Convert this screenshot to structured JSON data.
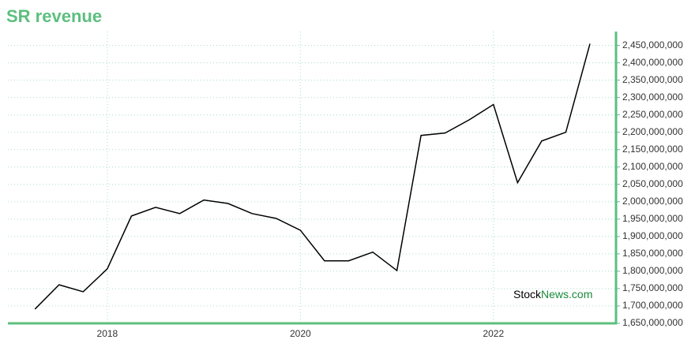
{
  "chart_data": {
    "type": "line",
    "title": "SR revenue",
    "watermark": [
      "Stock",
      "News.com"
    ],
    "x": [
      2017.25,
      2017.5,
      2017.75,
      2018.0,
      2018.25,
      2018.5,
      2018.75,
      2019.0,
      2019.25,
      2019.5,
      2019.75,
      2020.0,
      2020.25,
      2020.5,
      2020.75,
      2021.0,
      2021.25,
      2021.5,
      2021.75,
      2022.0,
      2022.25,
      2022.5,
      2022.75,
      2023.0
    ],
    "series": [
      {
        "color": "#000000",
        "values": [
          1691000000,
          1761000000,
          1741000000,
          1807000000,
          1959000000,
          1984000000,
          1966000000,
          2005000000,
          1995000000,
          1966000000,
          1952000000,
          1918000000,
          1830000000,
          1830000000,
          1855000000,
          1802000000,
          2191000000,
          2198000000,
          2236000000,
          2280000000,
          2055000000,
          2175000000,
          2200000000,
          2455000000
        ]
      }
    ],
    "xlim": [
      2016.97,
      2023.27
    ],
    "xticks": [
      2018,
      2020,
      2022
    ],
    "ylim": [
      1650000000,
      2490000000
    ],
    "yticks": [
      {
        "value": 1650000000,
        "label": "1,650,000,000"
      },
      {
        "value": 1700000000,
        "label": "1,700,000,000"
      },
      {
        "value": 1750000000,
        "label": "1,750,000,000"
      },
      {
        "value": 1800000000,
        "label": "1,800,000,000"
      },
      {
        "value": 1850000000,
        "label": "1,850,000,000"
      },
      {
        "value": 1900000000,
        "label": "1,900,000,000"
      },
      {
        "value": 1950000000,
        "label": "1,950,000,000"
      },
      {
        "value": 2000000000,
        "label": "2,000,000,000"
      },
      {
        "value": 2050000000,
        "label": "2,050,000,000"
      },
      {
        "value": 2100000000,
        "label": "2,100,000,000"
      },
      {
        "value": 2150000000,
        "label": "2,150,000,000"
      },
      {
        "value": 2200000000,
        "label": "2,200,000,000"
      },
      {
        "value": 2250000000,
        "label": "2,250,000,000"
      },
      {
        "value": 2300000000,
        "label": "2,300,000,000"
      },
      {
        "value": 2350000000,
        "label": "2,350,000,000"
      },
      {
        "value": 2400000000,
        "label": "2,400,000,000"
      },
      {
        "value": 2450000000,
        "label": "2,450,000,000"
      }
    ],
    "grid": true,
    "axis_color": "#5cbf7f"
  }
}
